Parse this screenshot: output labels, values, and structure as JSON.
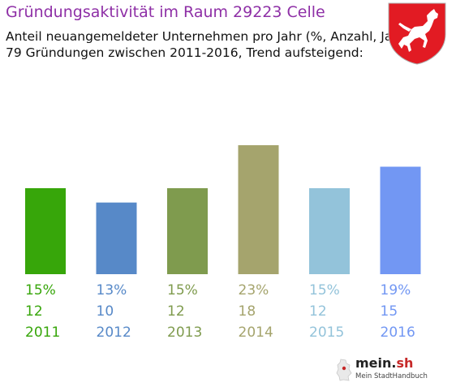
{
  "header": {
    "title": "Gründungsaktivität im Raum 29223 Celle",
    "subtitle_line1": "Anteil neuangemeldeter Unternehmen pro Jahr (%, Anzahl, Jahr)",
    "subtitle_line2": "79 Gründungen zwischen 2011-2016, Trend aufsteigend:"
  },
  "crest": {
    "icon": "saxon-steed-coat-of-arms-icon",
    "colors": {
      "field": "#e21b23",
      "horse": "#ffffff"
    }
  },
  "chart_data": {
    "type": "bar",
    "categories": [
      "2011",
      "2012",
      "2013",
      "2014",
      "2015",
      "2016"
    ],
    "values": [
      12,
      10,
      12,
      18,
      12,
      15
    ],
    "percent_labels": [
      "15%",
      "13%",
      "15%",
      "23%",
      "15%",
      "19%"
    ],
    "count_labels": [
      "12",
      "10",
      "12",
      "18",
      "12",
      "15"
    ],
    "year_labels": [
      "2011",
      "2012",
      "2013",
      "2014",
      "2015",
      "2016"
    ],
    "colors": [
      "#37a60a",
      "#5789c8",
      "#7f9b4e",
      "#a5a46d",
      "#93c3da",
      "#7297f3"
    ],
    "total": 79,
    "ylim": [
      0,
      18
    ],
    "grid": false,
    "legend": "none"
  },
  "footer": {
    "logo_text": "mein.sh",
    "logo_main": "mein.",
    "logo_tld": "sh",
    "logo_tagline": "Mein StadtHandbuch",
    "logo_icon": "germany-map-icon"
  }
}
